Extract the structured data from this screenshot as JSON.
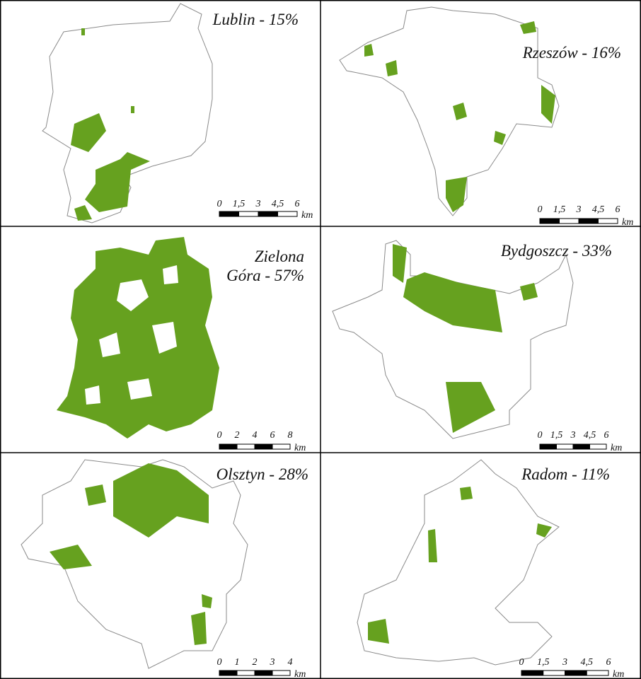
{
  "panels": [
    {
      "title_lines": [
        "Lublin - 15%"
      ],
      "scale": {
        "ticks": [
          "0",
          "1,5",
          "3",
          "4,5",
          "6"
        ],
        "unit": "km"
      }
    },
    {
      "title_lines": [
        "Rzeszów - 16%"
      ],
      "scale": {
        "ticks": [
          "0",
          "1,5",
          "3",
          "4,5",
          "6"
        ],
        "unit": "km"
      }
    },
    {
      "title_lines": [
        "Zielona",
        "Góra - 57%"
      ],
      "scale": {
        "ticks": [
          "0",
          "2",
          "4",
          "6",
          "8"
        ],
        "unit": "km"
      }
    },
    {
      "title_lines": [
        "Bydgoszcz - 33%"
      ],
      "scale": {
        "ticks": [
          "0",
          "1,5",
          "3",
          "4,5",
          "6"
        ],
        "unit": "km"
      }
    },
    {
      "title_lines": [
        "Olsztyn - 28%"
      ],
      "scale": {
        "ticks": [
          "0",
          "1",
          "2",
          "3",
          "4"
        ],
        "unit": "km"
      }
    },
    {
      "title_lines": [
        "Radom - 11%"
      ],
      "scale": {
        "ticks": [
          "0",
          "1,5",
          "3",
          "4,5",
          "6"
        ],
        "unit": "km"
      }
    }
  ]
}
